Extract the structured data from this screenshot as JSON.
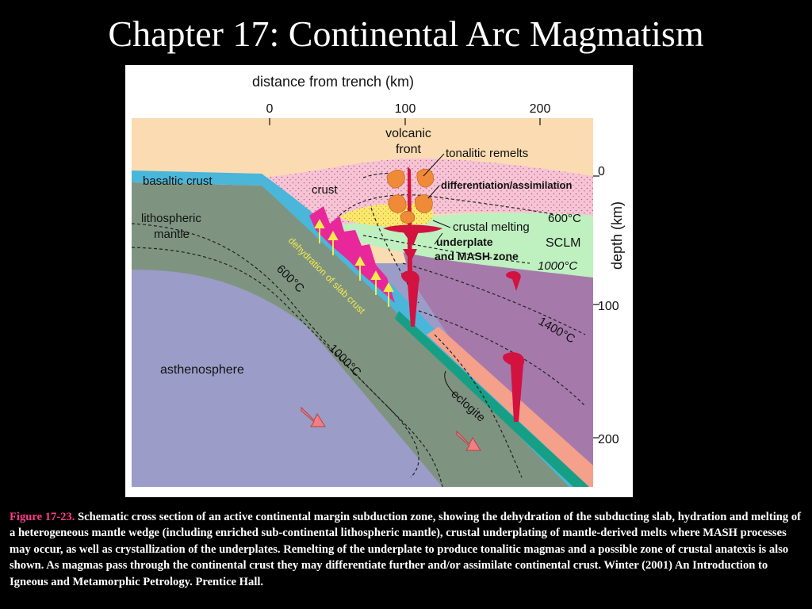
{
  "title": "Chapter 17: Continental Arc Magmatism",
  "figure": {
    "top_axis": {
      "label": "distance from trench (km)",
      "ticks": [
        "0",
        "100",
        "200"
      ]
    },
    "right_axis": {
      "label": "depth (km)",
      "ticks": [
        "0",
        "100",
        "200"
      ]
    },
    "labels": {
      "volcanic_front_1": "volcanic",
      "volcanic_front_2": "front",
      "tonalitic_remelts": "tonalitic remelts",
      "basaltic_crust": "basaltic crust",
      "crust": "crust",
      "differentiation": "differentiation/assimilation",
      "lithospheric_1": "lithospheric",
      "lithospheric_2": "mantle",
      "isotherm_600_mantle": "600°C",
      "crustal_melting": "crustal melting",
      "underplate_1": "underplate",
      "underplate_2": "and MASH zone",
      "sclm": "SCLM",
      "isotherm_1000_mantle": "1000°C",
      "dehydration": "dehydration of slab crust",
      "isotherm_600_slab": "600°C",
      "isotherm_1400": "1400°C",
      "isotherm_1000_slab": "1000°C",
      "asthenosphere": "asthenosphere",
      "eclogite": "eclogite"
    },
    "colors": {
      "sky": "#fbdcb2",
      "continental_crust": "#f7c4d6",
      "basaltic_crust": "#4ab6d9",
      "slab_mantle": "#7e9480",
      "asthenosphere": "#9b9cc8",
      "mantle_wedge": "#a57aab",
      "sclm": "#bff0c0",
      "melt": "#d2123f",
      "remelt": "#ef8b38",
      "crustal_melt": "#fbe86c",
      "dehydration": "#e8289a",
      "eclogite": "#179f86",
      "arrow": "#f07e82"
    }
  },
  "caption": {
    "figure_ref": "Figure 17-23.",
    "text": " Schematic cross section of an active continental margin subduction zone, showing the dehydration of the subducting slab, hydration and melting of a heterogeneous mantle wedge (including enriched sub-continental lithospheric mantle), crustal underplating of mantle-derived melts where MASH processes may occur, as well as crystallization of the underplates. Remelting of the underplate to produce tonalitic magmas and a possible zone of crustal anatexis is also shown. As magmas pass through the continental crust they may differentiate further and/or assimilate continental crust.  Winter (2001) An Introduction to Igneous and Metamorphic Petrology. Prentice Hall."
  }
}
